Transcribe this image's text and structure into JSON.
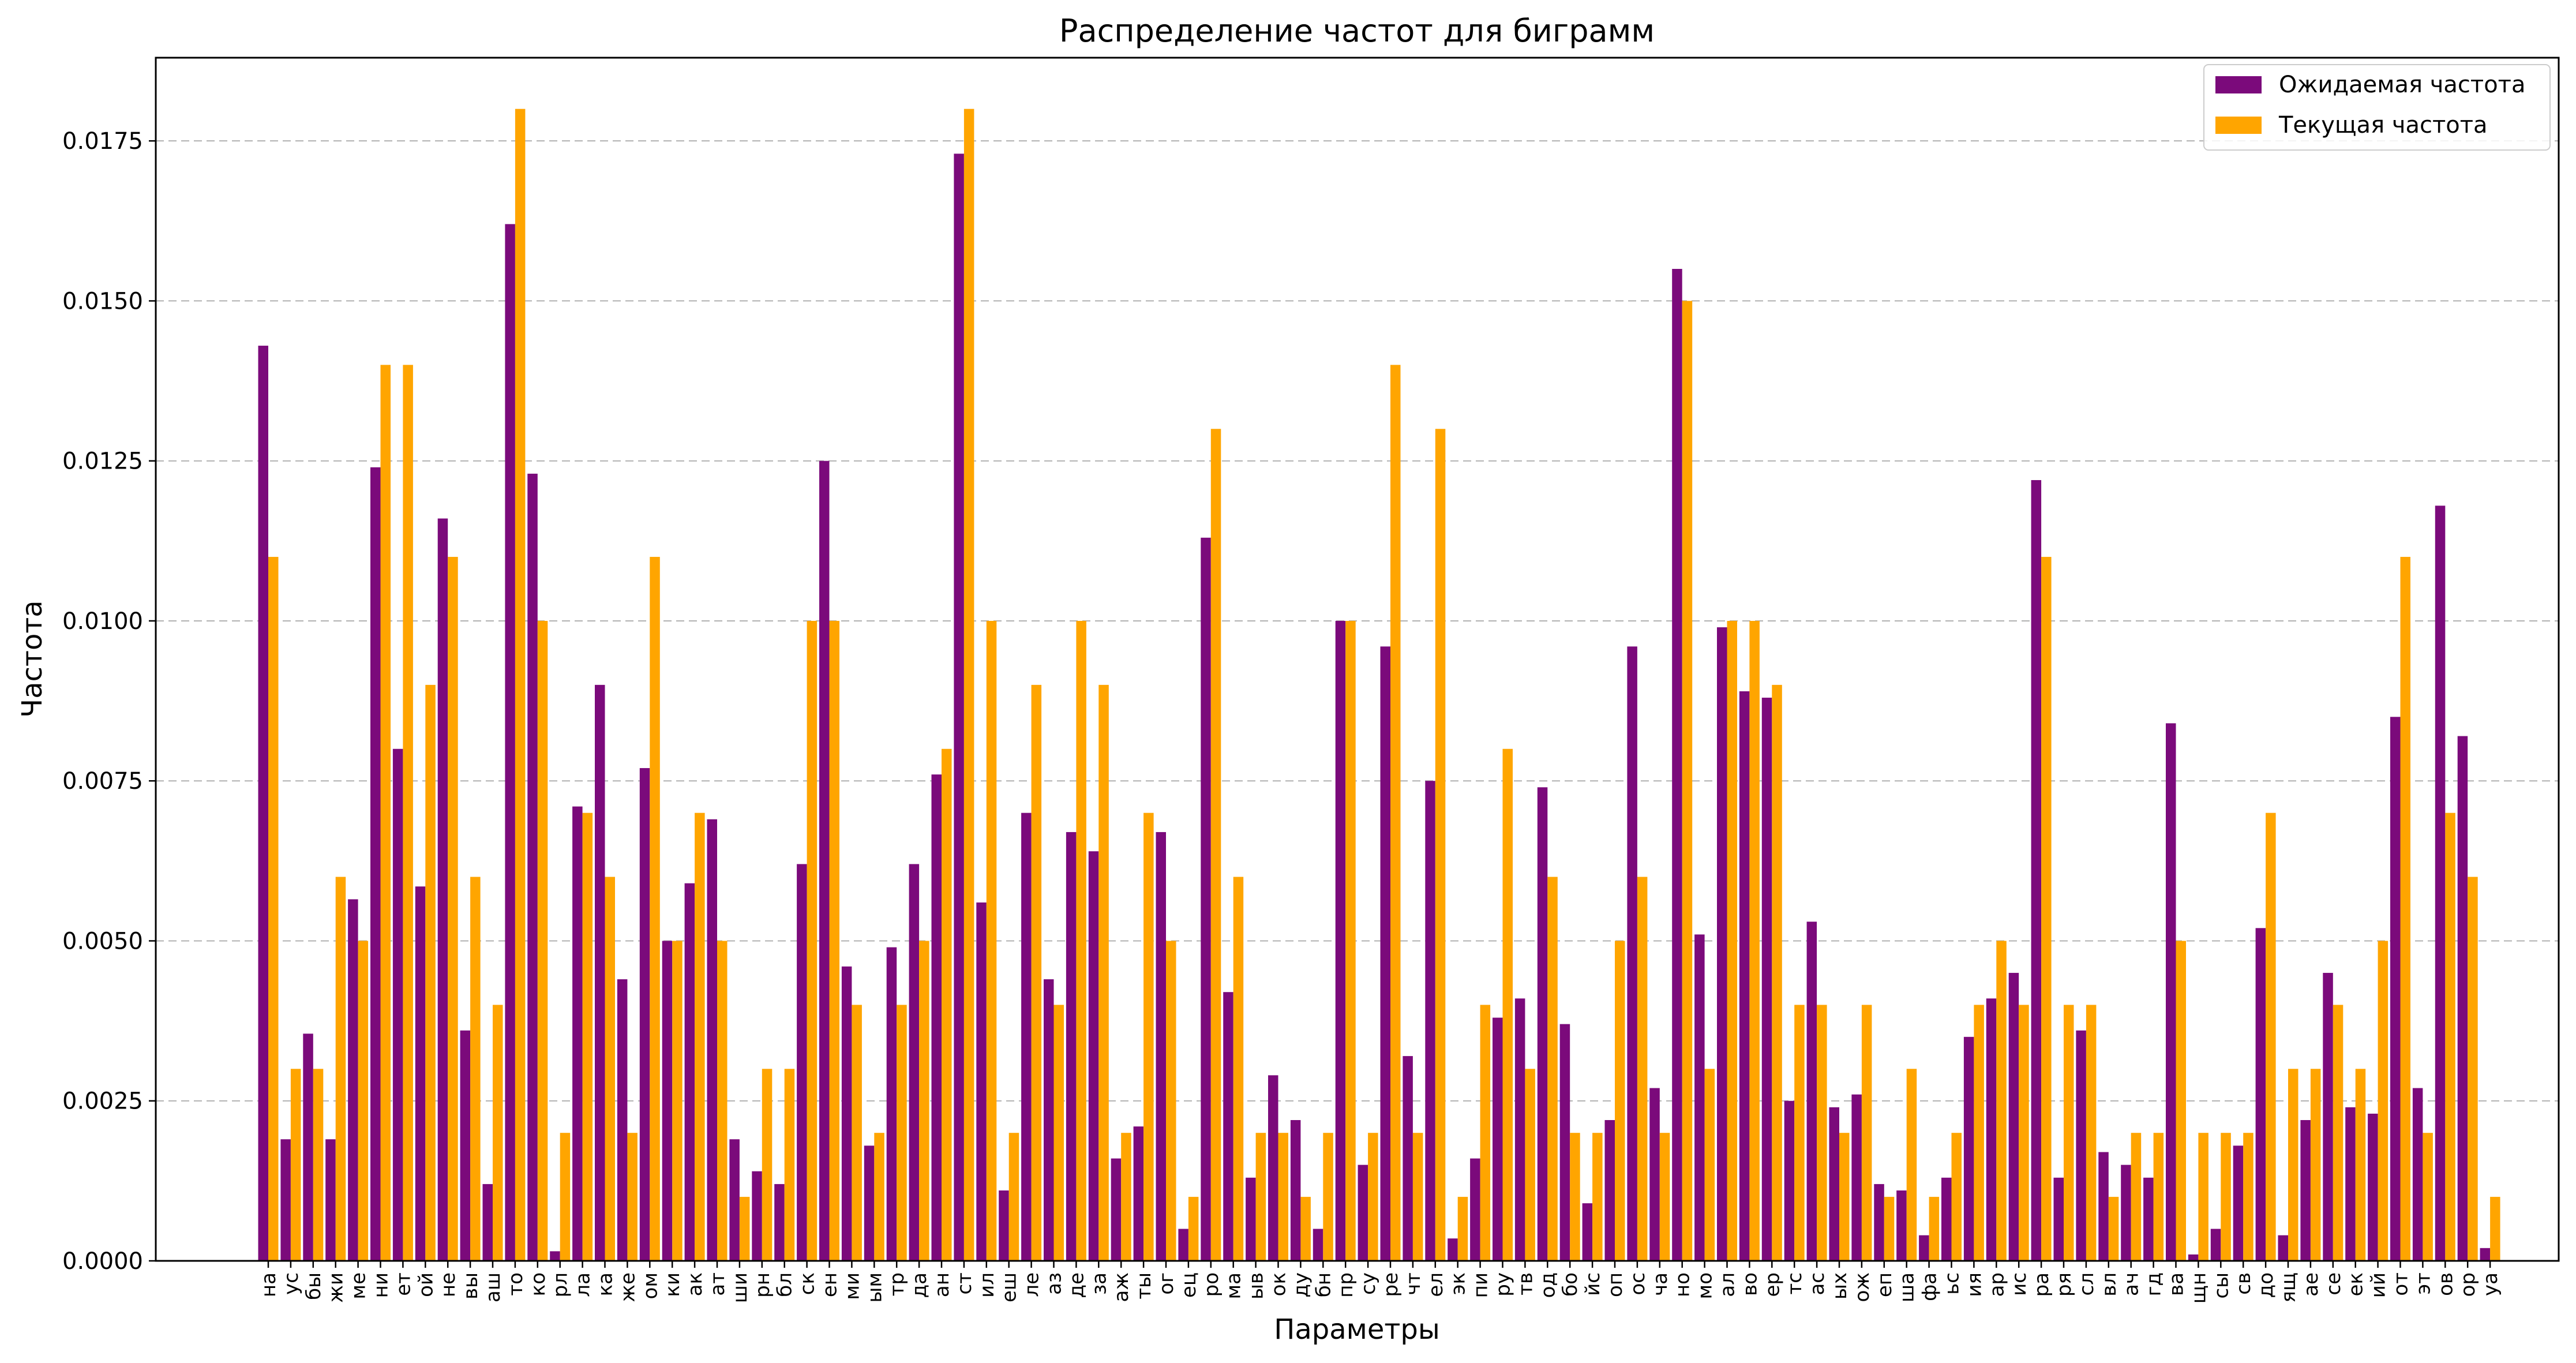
{
  "chart_data": {
    "type": "bar",
    "title": "Распределение частот для биграмм",
    "xlabel": "Параметры",
    "ylabel": "Частота",
    "ylim": [
      0,
      0.0188
    ],
    "yticks": [
      0,
      0.0025,
      0.005,
      0.0075,
      0.01,
      0.0125,
      0.015,
      0.0175
    ],
    "ytick_labels": [
      "0.0000",
      "0.0025",
      "0.0050",
      "0.0075",
      "0.0100",
      "0.0125",
      "0.0150",
      "0.0175"
    ],
    "grid": "y-dashed",
    "legend_position": "top-right",
    "categories": [
      "на",
      "ус",
      "бы",
      "жи",
      "ме",
      "ни",
      "ет",
      "ой",
      "не",
      "вы",
      "аш",
      "то",
      "ко",
      "рл",
      "ла",
      "ка",
      "же",
      "ом",
      "ки",
      "ак",
      "ат",
      "ши",
      "рн",
      "бл",
      "ск",
      "ен",
      "ми",
      "ым",
      "тр",
      "да",
      "ан",
      "ст",
      "ил",
      "еш",
      "ле",
      "аз",
      "де",
      "за",
      "аж",
      "ты",
      "ог",
      "ец",
      "ро",
      "ма",
      "ыв",
      "ок",
      "ду",
      "бн",
      "пр",
      "су",
      "ре",
      "чт",
      "ел",
      "эк",
      "пи",
      "ру",
      "тв",
      "од",
      "бо",
      "йс",
      "оп",
      "ос",
      "ча",
      "но",
      "мо",
      "ал",
      "во",
      "ер",
      "тс",
      "ас",
      "ых",
      "ож",
      "еп",
      "ша",
      "фа",
      "ьс",
      "ия",
      "ар",
      "ис",
      "ра",
      "ря",
      "сл",
      "вл",
      "ач",
      "гд",
      "ва",
      "щн",
      "сы",
      "св",
      "до",
      "ящ",
      "ае",
      "се",
      "ек",
      "ий",
      "от",
      "эт",
      "ов",
      "ор",
      "уа"
    ],
    "series": [
      {
        "name": "Ожидаемая частота",
        "color": "#7b0a7b",
        "values": [
          0.0143,
          0.0019,
          0.00355,
          0.0019,
          0.00565,
          0.0124,
          0.008,
          0.00585,
          0.0116,
          0.0036,
          0.0012,
          0.0162,
          0.0123,
          0.00015,
          0.0071,
          0.009,
          0.0044,
          0.0077,
          0.005,
          0.0059,
          0.0069,
          0.0019,
          0.0014,
          0.0012,
          0.0062,
          0.0125,
          0.0046,
          0.0018,
          0.0049,
          0.0062,
          0.0076,
          0.0173,
          0.0056,
          0.0011,
          0.007,
          0.0044,
          0.0067,
          0.0064,
          0.0016,
          0.0021,
          0.0067,
          0.0005,
          0.0113,
          0.0042,
          0.0013,
          0.0029,
          0.0022,
          0.0005,
          0.01,
          0.0015,
          0.0096,
          0.0032,
          0.0075,
          0.00035,
          0.0016,
          0.0038,
          0.0041,
          0.0074,
          0.0037,
          0.0009,
          0.0022,
          0.0096,
          0.0027,
          0.0155,
          0.0051,
          0.0099,
          0.0089,
          0.0088,
          0.0025,
          0.0053,
          0.0024,
          0.0026,
          0.0012,
          0.0011,
          0.0004,
          0.0013,
          0.0035,
          0.0041,
          0.0045,
          0.0122,
          0.0013,
          0.0036,
          0.0017,
          0.0015,
          0.0013,
          0.0084,
          0.0001,
          0.0005,
          0.0018,
          0.0052,
          0.0004,
          0.0022,
          0.0045,
          0.0024,
          0.0023,
          0.0085,
          0.0027,
          0.0118,
          0.0082,
          0.0002
        ]
      },
      {
        "name": "Текущая частота",
        "color": "#ffa500",
        "values": [
          0.011,
          0.003,
          0.003,
          0.006,
          0.005,
          0.014,
          0.014,
          0.009,
          0.011,
          0.006,
          0.004,
          0.018,
          0.01,
          0.002,
          0.007,
          0.006,
          0.002,
          0.011,
          0.005,
          0.007,
          0.005,
          0.001,
          0.003,
          0.003,
          0.01,
          0.01,
          0.004,
          0.002,
          0.004,
          0.005,
          0.008,
          0.018,
          0.01,
          0.002,
          0.009,
          0.004,
          0.01,
          0.009,
          0.002,
          0.007,
          0.005,
          0.001,
          0.013,
          0.006,
          0.002,
          0.002,
          0.001,
          0.002,
          0.01,
          0.002,
          0.014,
          0.002,
          0.013,
          0.001,
          0.004,
          0.008,
          0.003,
          0.006,
          0.002,
          0.002,
          0.005,
          0.006,
          0.002,
          0.015,
          0.003,
          0.01,
          0.01,
          0.009,
          0.004,
          0.004,
          0.002,
          0.004,
          0.001,
          0.003,
          0.001,
          0.002,
          0.004,
          0.005,
          0.004,
          0.011,
          0.004,
          0.004,
          0.001,
          0.002,
          0.002,
          0.005,
          0.002,
          0.002,
          0.002,
          0.007,
          0.003,
          0.003,
          0.004,
          0.003,
          0.005,
          0.011,
          0.002,
          0.007,
          0.006,
          0.001
        ]
      }
    ]
  }
}
